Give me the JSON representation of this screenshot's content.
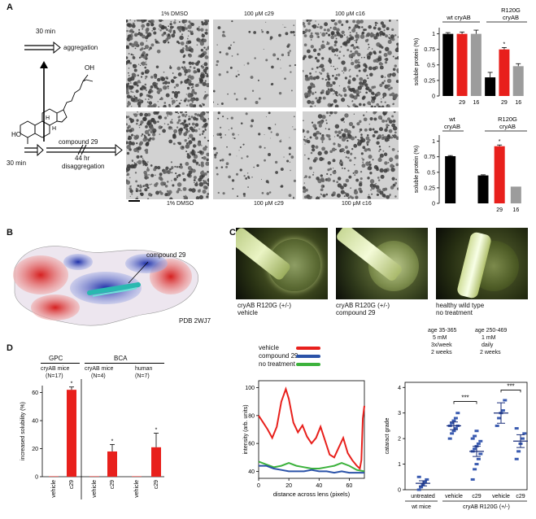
{
  "figure": {
    "panel_letters": {
      "A": "A",
      "B": "B",
      "C": "C",
      "D": "D"
    },
    "panelA": {
      "schematic": {
        "top_time": "30 min",
        "top_arrow_label": "aggregation",
        "compound_label": "compound 29",
        "bottom_time": "30 min",
        "bottom_time2": "44 hr",
        "bottom_arrow_label": "disaggregation",
        "structure_oh_top": "OH",
        "structure_ho": "HO",
        "structure_h": "H"
      },
      "micrographs": {
        "top_labels": [
          "1% DMSO",
          "100 μM c29",
          "100 μM c16"
        ],
        "bottom_labels": [
          "1% DMSO",
          "100 μM c29",
          "100 μM c16"
        ]
      }
    },
    "panelB": {
      "compound_label": "compound 29",
      "pdb_label": "PDB 2WJ7"
    },
    "panelC": {
      "captions": [
        {
          "line1": "cryAB R120G (+/-)",
          "line2": "vehicle"
        },
        {
          "line1": "cryAB R120G (+/-)",
          "line2": "compound 29"
        },
        {
          "line1": "healthy wild type",
          "line2": "no treatment"
        }
      ],
      "legend": [
        "vehicle",
        "compound 29",
        "no treatment"
      ]
    },
    "panelD": {
      "groups": {
        "gpc": "GPC",
        "bca": "BCA"
      },
      "sub": [
        {
          "name": "cryAB mice",
          "n": "(N=17)"
        },
        {
          "name": "cryAB mice",
          "n": "(N=4)"
        },
        {
          "name": "human",
          "n": "(N=7)"
        }
      ],
      "cataract_headers": [
        {
          "l1": "age 35-365",
          "l2": "5 mM",
          "l3": "3x/week",
          "l4": "2 weeks"
        },
        {
          "l1": "age 250-469",
          "l2": "1 mM",
          "l3": "daily",
          "l4": "2 weeks"
        }
      ],
      "sig": [
        "***",
        "***"
      ],
      "cataract_group_labels": {
        "wt": "wt mice",
        "mut": "cryAB R120G (+/-)"
      }
    }
  },
  "chart_data": [
    {
      "type": "bar",
      "id": "A-top",
      "title": "",
      "ylabel": "soluble protein (%)",
      "ylim": [
        0,
        1.1
      ],
      "yticks": [
        "0",
        "0.25",
        "0.5",
        "0.75",
        "1"
      ],
      "group_labels": [
        "wt cryAB",
        "R120G cryAB"
      ],
      "categories": [
        "",
        "29",
        "16",
        "",
        "29",
        "16"
      ],
      "values": [
        1.0,
        1.0,
        1.0,
        0.3,
        0.75,
        0.48
      ],
      "errors": [
        0.02,
        0.03,
        0.06,
        0.08,
        0.03,
        0.04
      ],
      "colors": [
        "#000000",
        "#e8201c",
        "#9c9c9c",
        "#000000",
        "#e8201c",
        "#9c9c9c"
      ],
      "asterisks": [
        "",
        "",
        "",
        "",
        "*",
        ""
      ]
    },
    {
      "type": "bar",
      "id": "A-bottom",
      "title": "",
      "ylabel": "soluble protein (%)",
      "ylim": [
        0,
        1.1
      ],
      "yticks": [
        "0",
        "0.25",
        "0.5",
        "0.75",
        "1"
      ],
      "group_labels": [
        "wt cryAB",
        "R120G cryAB"
      ],
      "categories": [
        "",
        "",
        "",
        "29",
        "16"
      ],
      "values": [
        0.76,
        null,
        0.45,
        0.92,
        0.27
      ],
      "errors": [
        0.01,
        0,
        0.01,
        0.02,
        0
      ],
      "colors": [
        "#000000",
        "#ffffff",
        "#000000",
        "#e8201c",
        "#9c9c9c"
      ],
      "asterisks": [
        "",
        "",
        "",
        "*",
        ""
      ]
    },
    {
      "type": "line",
      "id": "C-profile",
      "xlabel": "distance across lens (pixels)",
      "ylabel": "intensity (arb. units)",
      "xlim": [
        0,
        70
      ],
      "ylim": [
        35,
        105
      ],
      "xticks": [
        "0",
        "20",
        "40",
        "60"
      ],
      "yticks": [
        "40",
        "60",
        "80",
        "100"
      ],
      "series": [
        {
          "name": "vehicle",
          "color": "#e8201c",
          "x": [
            0,
            3,
            6,
            9,
            12,
            15,
            18,
            20,
            23,
            26,
            29,
            32,
            35,
            38,
            41,
            44,
            47,
            50,
            53,
            56,
            59,
            62,
            65,
            67,
            68,
            69,
            70
          ],
          "y": [
            80,
            75,
            70,
            64,
            72,
            90,
            99,
            92,
            75,
            68,
            73,
            65,
            60,
            64,
            72,
            62,
            52,
            50,
            57,
            64,
            53,
            48,
            44,
            42,
            48,
            78,
            87
          ]
        },
        {
          "name": "compound 29",
          "color": "#2a52a8",
          "x": [
            0,
            5,
            10,
            15,
            20,
            25,
            30,
            35,
            40,
            45,
            50,
            55,
            60,
            65,
            70
          ],
          "y": [
            44,
            44,
            42,
            41,
            40,
            40,
            40,
            41,
            40,
            40,
            39,
            40,
            39,
            39,
            39
          ]
        },
        {
          "name": "no treatment",
          "color": "#3cb23c",
          "x": [
            0,
            5,
            10,
            15,
            20,
            25,
            30,
            35,
            40,
            45,
            50,
            55,
            60,
            65,
            70
          ],
          "y": [
            47,
            45,
            43,
            44,
            46,
            44,
            43,
            42,
            42,
            43,
            44,
            46,
            44,
            41,
            40
          ]
        }
      ]
    },
    {
      "type": "bar",
      "id": "D-solubility",
      "ylabel": "increased solubility (%)",
      "ylim": [
        0,
        65
      ],
      "yticks": [
        "0",
        "20",
        "40",
        "60"
      ],
      "categories": [
        "vehicle",
        "c29",
        "vehicle",
        "c29",
        "vehicle",
        "c29"
      ],
      "values": [
        0.3,
        62,
        0.3,
        18,
        0.3,
        21
      ],
      "errors": [
        0,
        2,
        0,
        5,
        0,
        10
      ],
      "colors": [
        "#e8201c",
        "#e8201c",
        "#e8201c",
        "#e8201c",
        "#e8201c",
        "#e8201c"
      ],
      "asterisks": [
        "",
        "*",
        "",
        "*",
        "",
        "*"
      ]
    },
    {
      "type": "scatter",
      "id": "D-cataract",
      "ylabel": "cataract grade",
      "ylim": [
        0,
        4.2
      ],
      "yticks": [
        "0",
        "1",
        "2",
        "3",
        "4"
      ],
      "categories": [
        "untreated",
        "vehicle",
        "c29",
        "vehicle",
        "c29"
      ],
      "points": [
        [
          0,
          0.1,
          0.2,
          0.3,
          0.4,
          0.5
        ],
        [
          2.0,
          2.2,
          2.3,
          2.4,
          2.5,
          2.5,
          2.6,
          2.7,
          2.8,
          3.0
        ],
        [
          0.4,
          0.8,
          1.0,
          1.2,
          1.4,
          1.5,
          1.6,
          1.7,
          1.8,
          1.9,
          2.0,
          2.1,
          2.3
        ],
        [
          2.5,
          2.8,
          3.0,
          3.1,
          3.5
        ],
        [
          1.2,
          1.5,
          1.8,
          2.0,
          2.2,
          2.4
        ]
      ],
      "means": [
        0.25,
        2.5,
        1.5,
        3.0,
        1.9
      ],
      "sems": [
        0.1,
        0.15,
        0.2,
        0.4,
        0.25
      ],
      "color": "#3a5bb0"
    }
  ]
}
